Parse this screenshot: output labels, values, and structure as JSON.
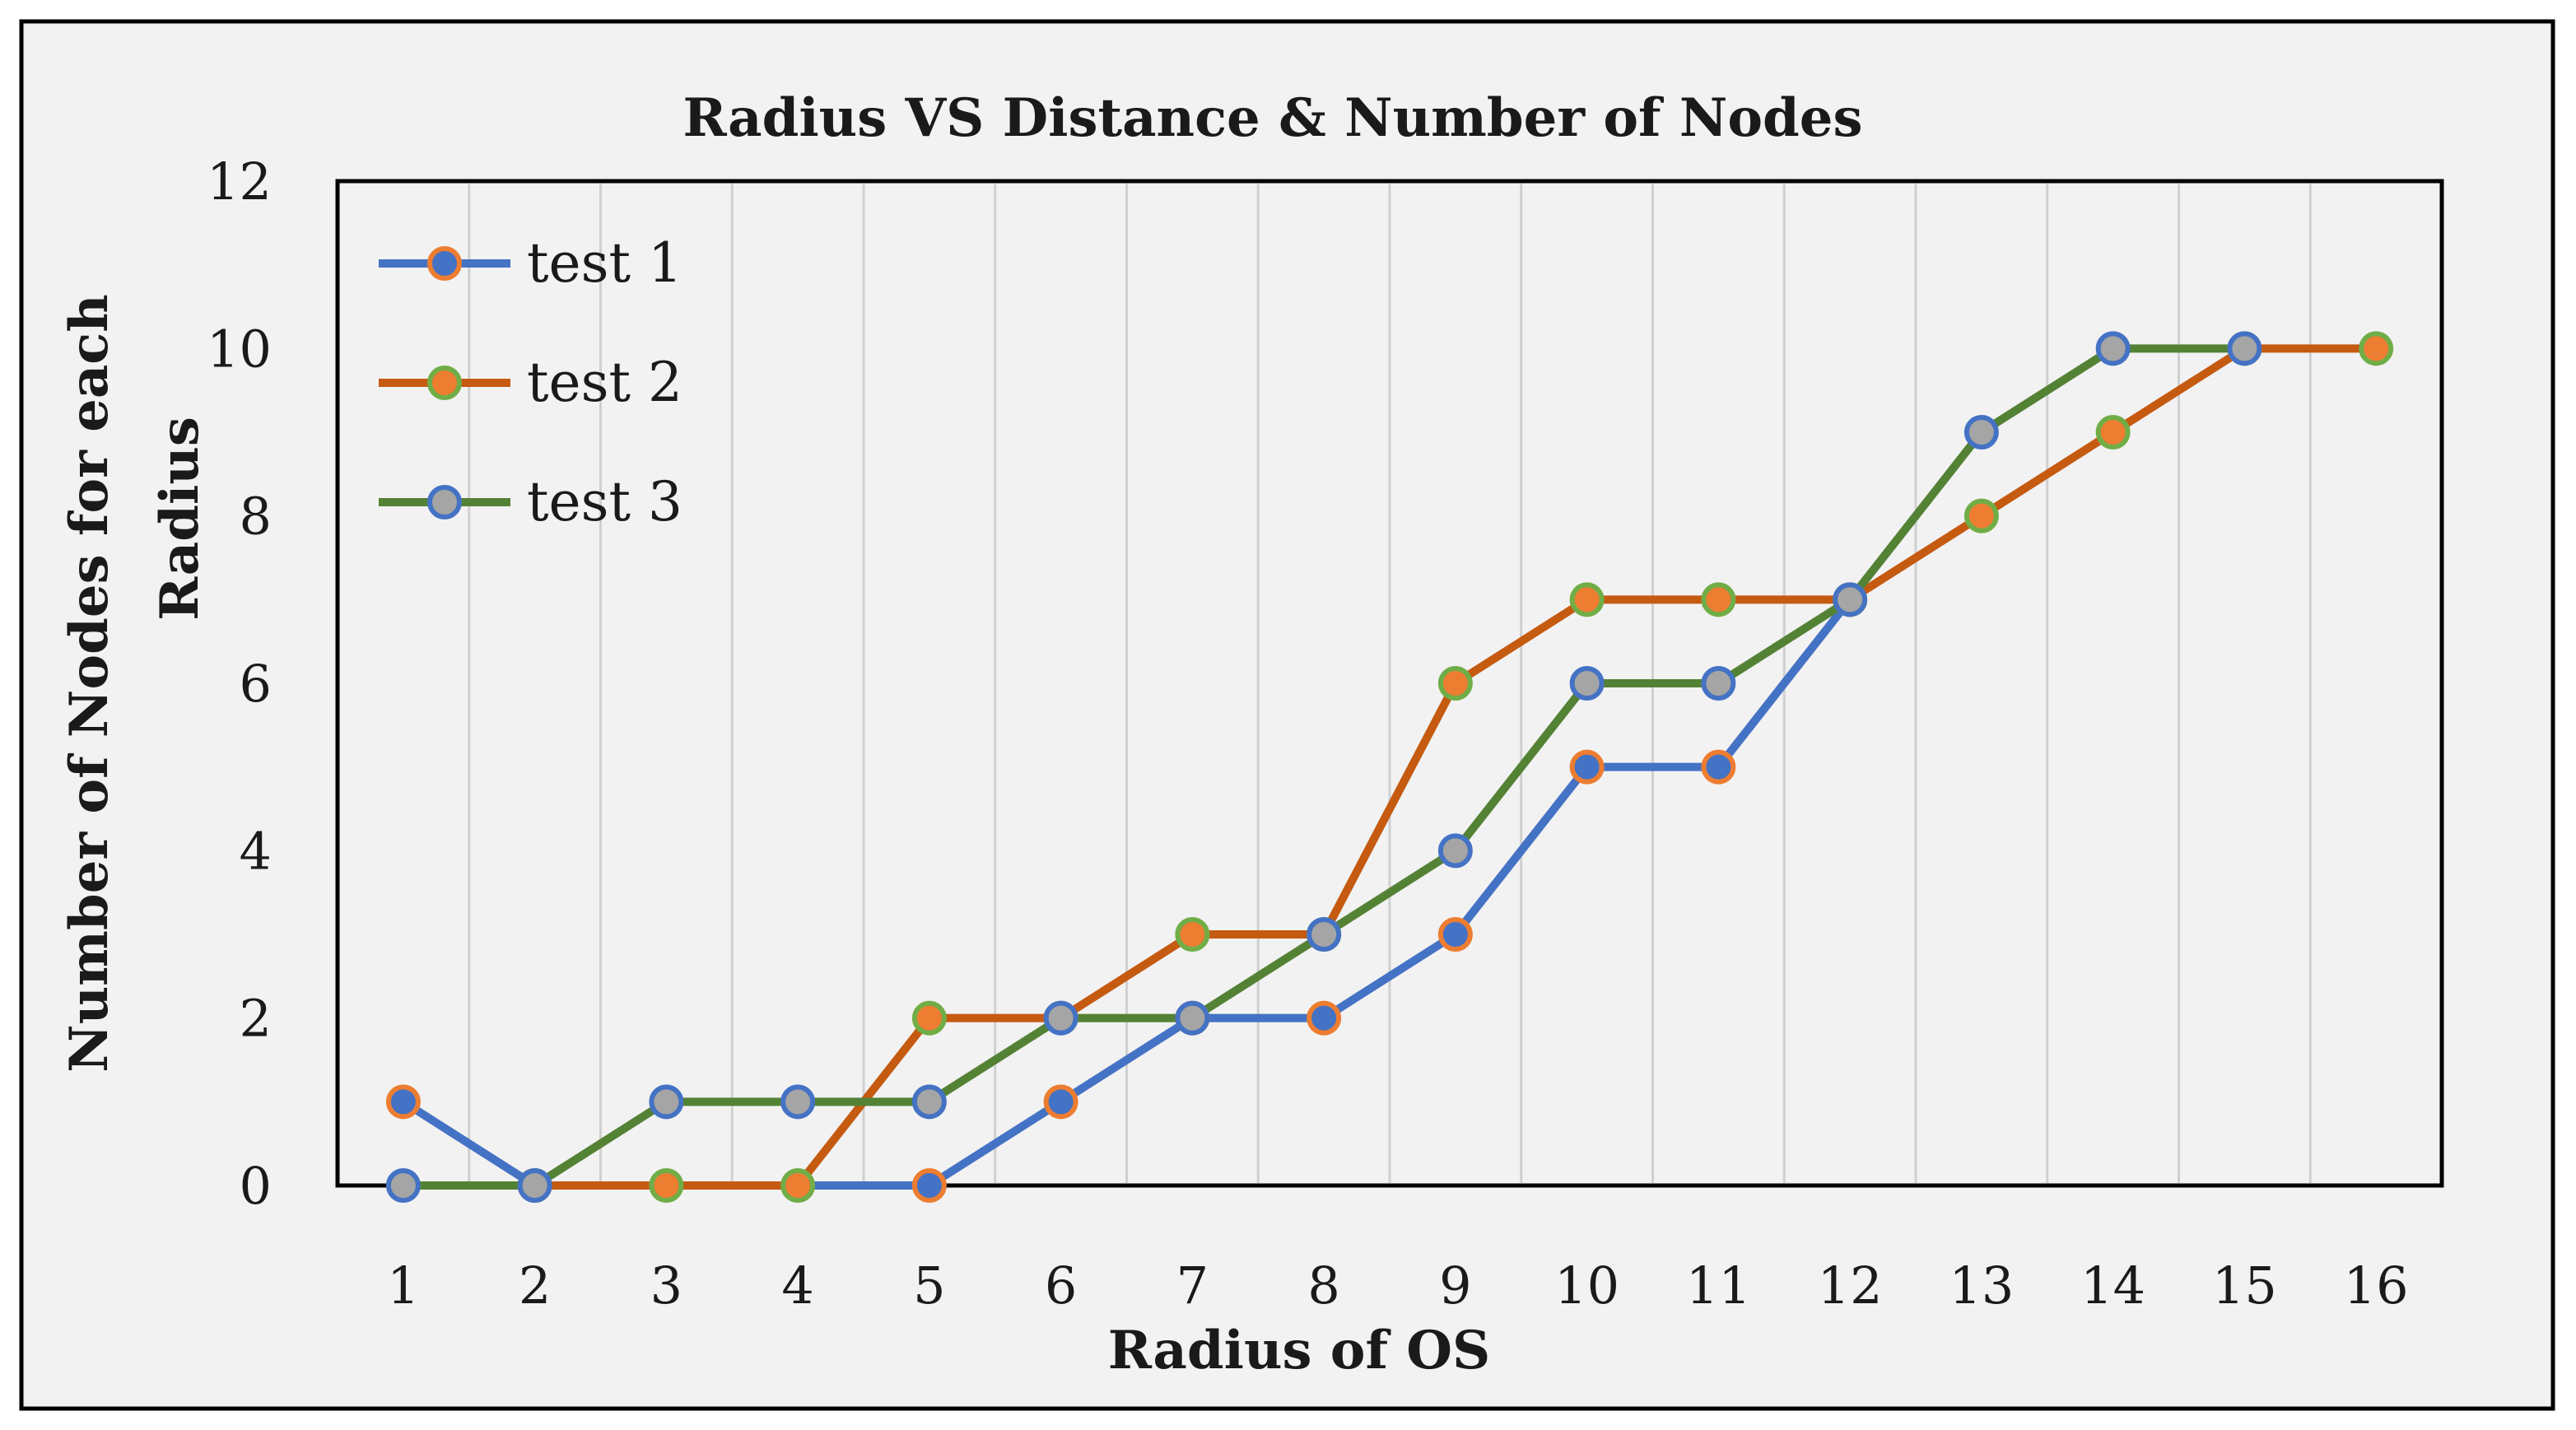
{
  "chart_data": {
    "type": "line",
    "title": "Radius VS Distance & Number of Nodes",
    "xlabel": "Radius of OS",
    "ylabel_line1": "Number of Nodes for each",
    "ylabel_line2": "Radius",
    "categories": [
      "1",
      "2",
      "3",
      "4",
      "5",
      "6",
      "7",
      "8",
      "9",
      "10",
      "11",
      "12",
      "13",
      "14",
      "15",
      "16"
    ],
    "ylim": [
      0,
      12
    ],
    "yticks": [
      "0",
      "2",
      "4",
      "6",
      "8",
      "10",
      "12"
    ],
    "grid": "vertical",
    "legend_position": "top-left",
    "series": [
      {
        "name": "test 1",
        "line_color": "#4472C4",
        "marker_fill": "#4472C4",
        "marker_edge": "#ED7D31",
        "values": [
          1,
          0,
          null,
          null,
          0,
          1,
          2,
          2,
          3,
          5,
          5,
          7,
          null,
          null,
          null,
          null
        ]
      },
      {
        "name": "test 2",
        "line_color": "#C55A11",
        "marker_fill": "#ED7D31",
        "marker_edge": "#70AD47",
        "values": [
          null,
          0,
          0,
          0,
          2,
          2,
          3,
          3,
          6,
          7,
          7,
          7,
          8,
          9,
          10,
          10
        ]
      },
      {
        "name": "test 3",
        "line_color": "#548235",
        "marker_fill": "#A5A5A5",
        "marker_edge": "#4472C4",
        "values": [
          0,
          0,
          1,
          1,
          1,
          2,
          2,
          3,
          4,
          6,
          6,
          7,
          9,
          10,
          10,
          null
        ]
      }
    ],
    "colors": {
      "chart_background": "#F2F2F2",
      "page_background": "#FFFFFF",
      "frame": "#000000",
      "gridline": "#D0D0D0"
    }
  }
}
